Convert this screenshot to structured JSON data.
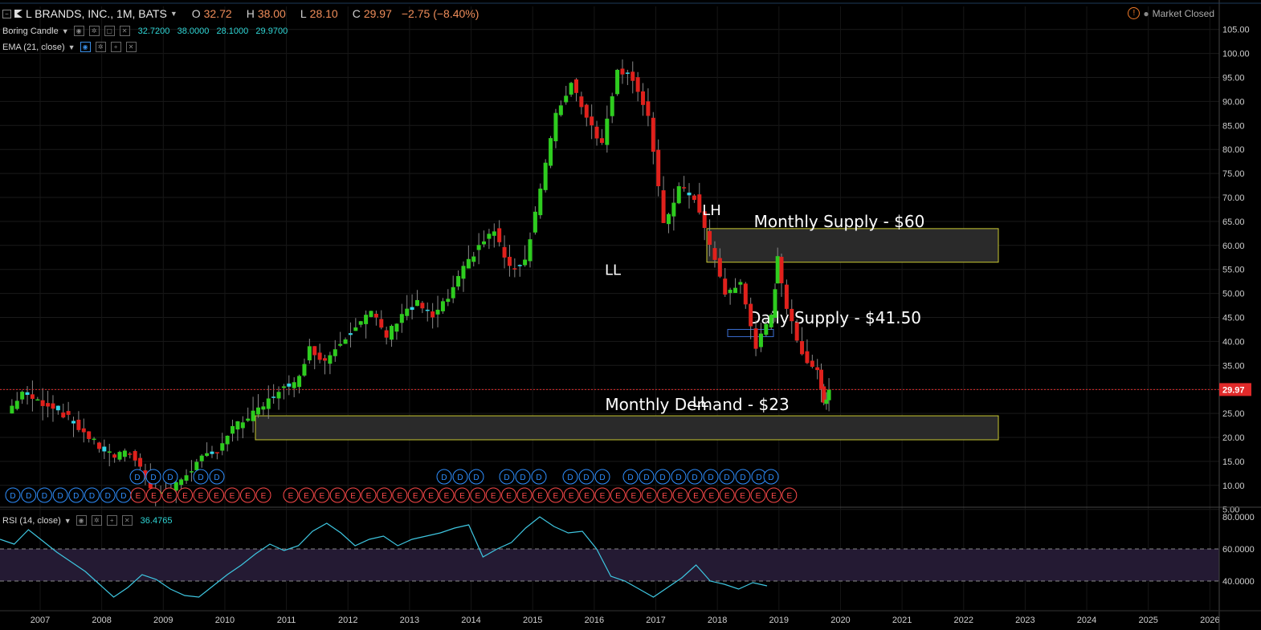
{
  "header": {
    "symbol_title": "L BRANDS, INC., 1M, BATS",
    "ohlc": [
      {
        "key": "O",
        "value": "32.72"
      },
      {
        "key": "H",
        "value": "38.00"
      },
      {
        "key": "L",
        "value": "28.10"
      },
      {
        "key": "C",
        "value": "29.97"
      }
    ],
    "change": "−2.75 (−8.40%)",
    "market_status": "Market Closed"
  },
  "indicators": {
    "boring_candle": {
      "name": "Boring Candle",
      "values": "32.7200   38.0000   28.1000   29.9700"
    },
    "ema": {
      "name": "EMA (21, close)"
    },
    "rsi": {
      "name": "RSI (14, close)",
      "value": "36.4765"
    }
  },
  "colors": {
    "background": "#000000",
    "up_candle": "#2ecc1f",
    "down_candle": "#e0211c",
    "boring_candle": "#33d6e8",
    "zone_border": "#c8c832",
    "rsi_line": "#3ec6e0",
    "rsi_band": "#241a33",
    "price_line": "#e02a2a",
    "dividend_marker": "#2f8fff",
    "earnings_marker": "#ff4a4a"
  },
  "chart_data": {
    "type": "candlestick",
    "timeframe": "1M",
    "x_axis_labels": [
      "2007",
      "2008",
      "2009",
      "2010",
      "2011",
      "2012",
      "2013",
      "2014",
      "2015",
      "2016",
      "2017",
      "2018",
      "2019",
      "2020",
      "2021",
      "2022",
      "2023",
      "2024",
      "2025",
      "2026"
    ],
    "y_axis_labels": [
      "105.00",
      "100.00",
      "95.00",
      "90.00",
      "85.00",
      "80.00",
      "75.00",
      "70.00",
      "65.00",
      "60.00",
      "55.00",
      "50.00",
      "45.00",
      "40.00",
      "35.00",
      "30.00",
      "25.00",
      "20.00",
      "15.00",
      "10.00",
      "5.00"
    ],
    "ylim": [
      0,
      105
    ],
    "last_price": "29.97",
    "candle_closes": [
      {
        "d": "2006-07",
        "c": 25.0
      },
      {
        "d": "2006-10",
        "c": 29.5
      },
      {
        "d": "2007-01",
        "c": 27.5
      },
      {
        "d": "2007-04",
        "c": 26.5
      },
      {
        "d": "2007-07",
        "c": 24.0
      },
      {
        "d": "2007-10",
        "c": 21.0
      },
      {
        "d": "2008-01",
        "c": 18.0
      },
      {
        "d": "2008-04",
        "c": 16.0
      },
      {
        "d": "2008-07",
        "c": 17.0
      },
      {
        "d": "2008-10",
        "c": 12.0
      },
      {
        "d": "2008-12",
        "c": 8.0
      },
      {
        "d": "2009-03",
        "c": 9.0
      },
      {
        "d": "2009-06",
        "c": 12.5
      },
      {
        "d": "2009-09",
        "c": 15.5
      },
      {
        "d": "2009-12",
        "c": 17.5
      },
      {
        "d": "2010-03",
        "c": 22.0
      },
      {
        "d": "2010-06",
        "c": 24.0
      },
      {
        "d": "2010-09",
        "c": 26.5
      },
      {
        "d": "2010-12",
        "c": 30.0
      },
      {
        "d": "2011-03",
        "c": 31.0
      },
      {
        "d": "2011-06",
        "c": 38.5
      },
      {
        "d": "2011-09",
        "c": 36.0
      },
      {
        "d": "2011-12",
        "c": 40.0
      },
      {
        "d": "2012-03",
        "c": 43.5
      },
      {
        "d": "2012-06",
        "c": 46.0
      },
      {
        "d": "2012-09",
        "c": 41.0
      },
      {
        "d": "2012-12",
        "c": 46.0
      },
      {
        "d": "2013-03",
        "c": 48.0
      },
      {
        "d": "2013-06",
        "c": 45.0
      },
      {
        "d": "2013-09",
        "c": 49.0
      },
      {
        "d": "2013-12",
        "c": 55.0
      },
      {
        "d": "2014-03",
        "c": 60.0
      },
      {
        "d": "2014-06",
        "c": 63.0
      },
      {
        "d": "2014-09",
        "c": 55.0
      },
      {
        "d": "2014-12",
        "c": 57.0
      },
      {
        "d": "2015-03",
        "c": 72.0
      },
      {
        "d": "2015-06",
        "c": 87.0
      },
      {
        "d": "2015-09",
        "c": 94.0
      },
      {
        "d": "2015-12",
        "c": 87.0
      },
      {
        "d": "2016-03",
        "c": 81.0
      },
      {
        "d": "2016-06",
        "c": 97.0
      },
      {
        "d": "2016-09",
        "c": 95.0
      },
      {
        "d": "2016-12",
        "c": 87.0
      },
      {
        "d": "2017-03",
        "c": 64.0
      },
      {
        "d": "2017-06",
        "c": 72.0
      },
      {
        "d": "2017-09",
        "c": 70.0
      },
      {
        "d": "2017-12",
        "c": 60.0
      },
      {
        "d": "2018-03",
        "c": 50.0
      },
      {
        "d": "2018-06",
        "c": 52.0
      },
      {
        "d": "2018-09",
        "c": 39.0
      },
      {
        "d": "2018-12",
        "c": 45.0
      },
      {
        "d": "2019-01",
        "c": 58.0
      },
      {
        "d": "2019-03",
        "c": 47.0
      },
      {
        "d": "2019-05",
        "c": 40.0
      },
      {
        "d": "2019-07",
        "c": 36.0
      },
      {
        "d": "2019-09",
        "c": 34.0
      },
      {
        "d": "2019-10",
        "c": 27.0
      },
      {
        "d": "2019-11",
        "c": 29.97
      }
    ],
    "zones": [
      {
        "label": "Monthly Supply - $60",
        "from": 56.5,
        "to": 63.5
      },
      {
        "label": "Daily Supply - $41.50",
        "from": 41.0,
        "to": 42.5
      },
      {
        "label": "Monthly Demand - $23",
        "from": 19.5,
        "to": 24.5
      }
    ],
    "annotations": [
      {
        "text": "LH",
        "price": 67.5
      },
      {
        "text": "LL",
        "price": 55.0
      },
      {
        "text": "LL",
        "price": 27.5
      }
    ],
    "event_markers": {
      "dividend_label": "D",
      "earnings_label": "E"
    },
    "rsi": {
      "ylim": [
        25,
        82
      ],
      "ticks": [
        "80.0000",
        "60.0000",
        "40.0000"
      ],
      "band": [
        40,
        60
      ],
      "values": [
        66,
        63,
        72,
        65,
        58,
        52,
        46,
        38,
        30,
        36,
        44,
        41,
        35,
        31,
        30,
        37,
        44,
        50,
        57,
        63,
        59,
        62,
        71,
        76,
        70,
        62,
        66,
        68,
        62,
        66,
        68,
        70,
        73,
        75,
        55,
        60,
        64,
        73,
        80,
        74,
        70,
        71,
        60,
        43,
        40,
        35,
        30,
        36,
        42,
        50,
        40,
        38,
        35,
        39,
        37
      ]
    }
  }
}
